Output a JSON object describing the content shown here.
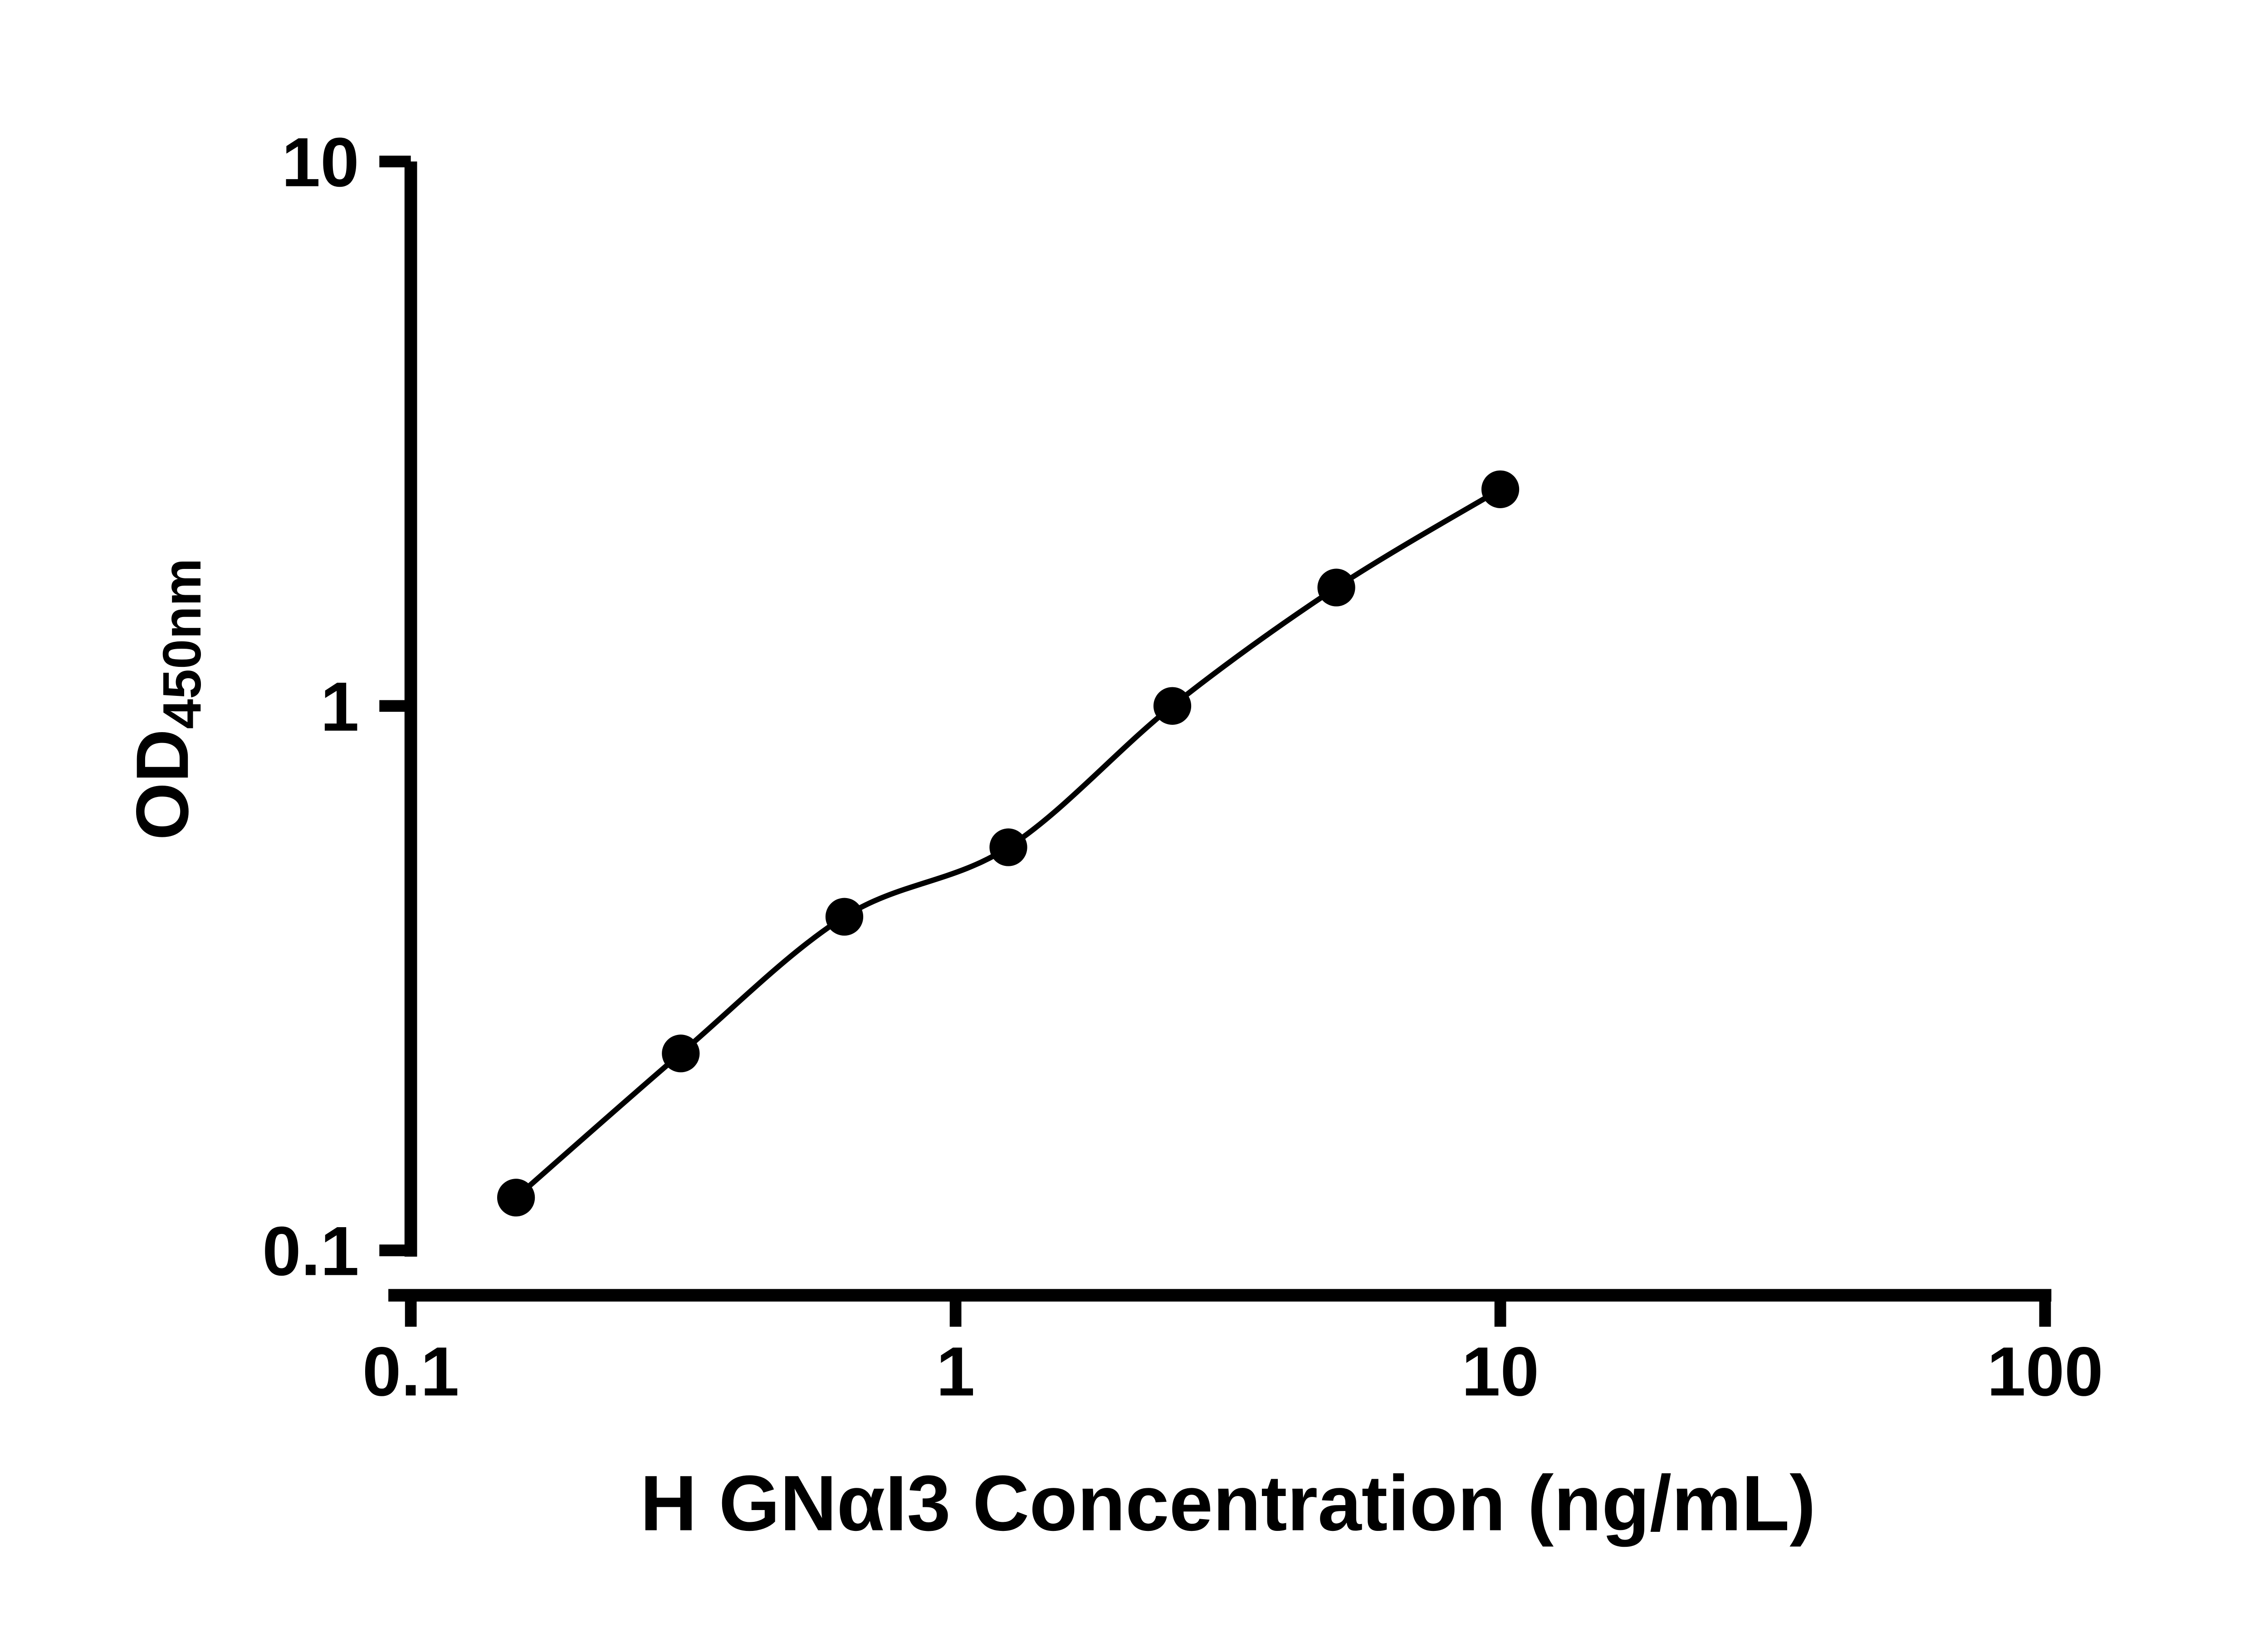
{
  "figure": {
    "background": "#ffffff",
    "foreground": "#000000"
  },
  "chart_data": {
    "type": "scatter",
    "subtype": "log-log standard curve with smooth fit line and filled circle markers",
    "x": [
      0.156,
      0.313,
      0.625,
      1.25,
      2.5,
      5,
      10
    ],
    "y": [
      0.125,
      0.23,
      0.41,
      0.55,
      1.0,
      1.65,
      2.5
    ],
    "xlabel": "H GNαI3 Concentration (ng/mL)",
    "ylabel_main": "OD",
    "ylabel_sub": "450nm",
    "xscale": "log",
    "yscale": "log",
    "xlim": [
      0.1,
      100
    ],
    "ylim": [
      0.1,
      10
    ],
    "x_ticks": [
      0.1,
      1,
      10,
      100
    ],
    "x_tick_labels": [
      "0.1",
      "1",
      "10",
      "100"
    ],
    "y_ticks": [
      10,
      1,
      0.1
    ],
    "y_tick_labels": [
      "10",
      "1",
      "0.1"
    ],
    "grid": false,
    "legend": "none",
    "marker": "filled-circle",
    "line": "smooth",
    "color": "#000000",
    "background": "#ffffff"
  }
}
